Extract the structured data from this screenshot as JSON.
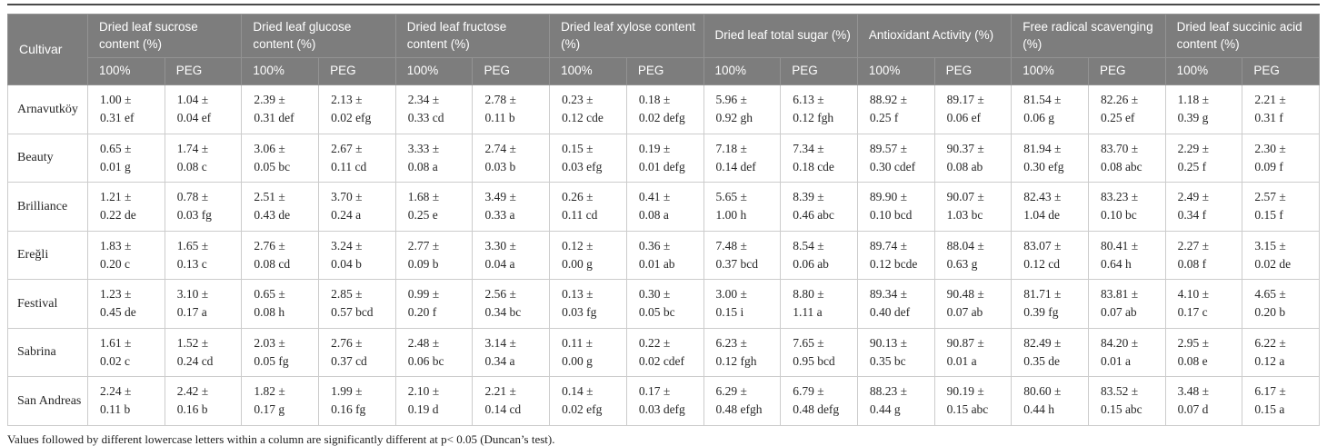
{
  "colors": {
    "header_bg": "#7d7d7d",
    "header_border": "#939393",
    "header_text": "#ffffff",
    "body_border": "#cccccc",
    "body_text": "#262626",
    "top_rule": "#4a4a4a"
  },
  "table": {
    "corner_header": "Cultivar",
    "group_headers": [
      "Dried leaf sucrose content (%)",
      "Dried leaf glucose content (%)",
      "Dried leaf fructose content (%)",
      "Dried leaf xylose content (%)",
      "Dried leaf total sugar (%)",
      "Antioxidant Activity (%)",
      "Free radical scavenging (%)",
      "Dried leaf succinic acid content (%)"
    ],
    "subheaders": [
      "100%",
      "PEG"
    ],
    "rows": [
      {
        "cultivar": "Arnavutköy",
        "cells": [
          [
            "1.00 ±",
            "0.31 ef"
          ],
          [
            "1.04 ±",
            "0.04 ef"
          ],
          [
            "2.39 ±",
            "0.31 def"
          ],
          [
            "2.13 ±",
            "0.02 efg"
          ],
          [
            "2.34 ±",
            "0.33 cd"
          ],
          [
            "2.78 ±",
            "0.11 b"
          ],
          [
            "0.23 ±",
            "0.12 cde"
          ],
          [
            "0.18 ±",
            "0.02 defg"
          ],
          [
            "5.96 ±",
            "0.92 gh"
          ],
          [
            "6.13 ±",
            "0.12 fgh"
          ],
          [
            "88.92 ±",
            "0.25 f"
          ],
          [
            "89.17 ±",
            "0.06 ef"
          ],
          [
            "81.54 ±",
            "0.06 g"
          ],
          [
            "82.26 ±",
            "0.25 ef"
          ],
          [
            "1.18 ±",
            "0.39 g"
          ],
          [
            "2.21 ±",
            "0.31 f"
          ]
        ]
      },
      {
        "cultivar": "Beauty",
        "cells": [
          [
            "0.65 ±",
            "0.01 g"
          ],
          [
            "1.74 ±",
            "0.08 c"
          ],
          [
            "3.06 ±",
            "0.05 bc"
          ],
          [
            "2.67 ±",
            "0.11 cd"
          ],
          [
            "3.33 ±",
            "0.08 a"
          ],
          [
            "2.74 ±",
            "0.03 b"
          ],
          [
            "0.15 ±",
            "0.03 efg"
          ],
          [
            "0.19 ±",
            "0.01 defg"
          ],
          [
            "7.18 ±",
            "0.14 def"
          ],
          [
            "7.34 ±",
            "0.18 cde"
          ],
          [
            "89.57 ±",
            "0.30 cdef"
          ],
          [
            "90.37 ±",
            "0.08 ab"
          ],
          [
            "81.94 ±",
            "0.30 efg"
          ],
          [
            "83.70 ±",
            "0.08 abc"
          ],
          [
            "2.29 ±",
            "0.25 f"
          ],
          [
            "2.30 ±",
            "0.09 f"
          ]
        ]
      },
      {
        "cultivar": "Brilliance",
        "cells": [
          [
            "1.21 ±",
            "0.22 de"
          ],
          [
            "0.78 ±",
            "0.03 fg"
          ],
          [
            "2.51 ±",
            "0.43 de"
          ],
          [
            "3.70 ±",
            "0.24 a"
          ],
          [
            "1.68 ±",
            "0.25 e"
          ],
          [
            "3.49 ±",
            "0.33 a"
          ],
          [
            "0.26 ±",
            "0.11 cd"
          ],
          [
            "0.41 ±",
            "0.08 a"
          ],
          [
            "5.65 ±",
            "1.00 h"
          ],
          [
            "8.39 ±",
            "0.46 abc"
          ],
          [
            "89.90 ±",
            "0.10 bcd"
          ],
          [
            "90.07 ±",
            "1.03 bc"
          ],
          [
            "82.43 ±",
            "1.04 de"
          ],
          [
            "83.23 ±",
            "0.10 bc"
          ],
          [
            "2.49 ±",
            "0.34 f"
          ],
          [
            "2.57 ±",
            "0.15 f"
          ]
        ]
      },
      {
        "cultivar": "Ereğli",
        "cells": [
          [
            "1.83 ±",
            "0.20 c"
          ],
          [
            "1.65 ±",
            "0.13 c"
          ],
          [
            "2.76 ±",
            "0.08 cd"
          ],
          [
            "3.24 ±",
            "0.04 b"
          ],
          [
            "2.77 ±",
            "0.09 b"
          ],
          [
            "3.30 ±",
            "0.04 a"
          ],
          [
            "0.12 ±",
            "0.00 g"
          ],
          [
            "0.36 ±",
            "0.01 ab"
          ],
          [
            "7.48 ±",
            "0.37 bcd"
          ],
          [
            "8.54 ±",
            "0.06 ab"
          ],
          [
            "89.74 ±",
            "0.12 bcde"
          ],
          [
            "88.04 ±",
            "0.63 g"
          ],
          [
            "83.07 ±",
            "0.12 cd"
          ],
          [
            "80.41 ±",
            "0.64 h"
          ],
          [
            "2.27 ±",
            "0.08 f"
          ],
          [
            "3.15 ±",
            "0.02 de"
          ]
        ]
      },
      {
        "cultivar": "Festival",
        "cells": [
          [
            "1.23 ±",
            "0.45 de"
          ],
          [
            "3.10 ±",
            "0.17 a"
          ],
          [
            "0.65 ±",
            "0.08 h"
          ],
          [
            "2.85 ±",
            "0.57 bcd"
          ],
          [
            "0.99 ±",
            "0.20 f"
          ],
          [
            "2.56 ±",
            "0.34 bc"
          ],
          [
            "0.13 ±",
            "0.03 fg"
          ],
          [
            "0.30 ±",
            "0.05 bc"
          ],
          [
            "3.00 ±",
            "0.15 i"
          ],
          [
            "8.80 ±",
            "1.11 a"
          ],
          [
            "89.34 ±",
            "0.40 def"
          ],
          [
            "90.48 ±",
            "0.07 ab"
          ],
          [
            "81.71 ±",
            "0.39 fg"
          ],
          [
            "83.81 ±",
            "0.07 ab"
          ],
          [
            "4.10 ±",
            "0.17 c"
          ],
          [
            "4.65 ±",
            "0.20 b"
          ]
        ]
      },
      {
        "cultivar": "Sabrina",
        "cells": [
          [
            "1.61 ±",
            "0.02 c"
          ],
          [
            "1.52 ±",
            "0.24 cd"
          ],
          [
            "2.03 ±",
            "0.05 fg"
          ],
          [
            "2.76 ±",
            "0.37 cd"
          ],
          [
            "2.48 ±",
            "0.06 bc"
          ],
          [
            "3.14 ±",
            "0.34 a"
          ],
          [
            "0.11 ±",
            "0.00 g"
          ],
          [
            "0.22 ±",
            "0.02 cdef"
          ],
          [
            "6.23 ±",
            "0.12 fgh"
          ],
          [
            "7.65 ±",
            "0.95 bcd"
          ],
          [
            "90.13 ±",
            "0.35 bc"
          ],
          [
            "90.87 ±",
            "0.01 a"
          ],
          [
            "82.49 ±",
            "0.35 de"
          ],
          [
            "84.20 ±",
            "0.01 a"
          ],
          [
            "2.95 ±",
            "0.08 e"
          ],
          [
            "6.22 ±",
            "0.12 a"
          ]
        ]
      },
      {
        "cultivar": "San Andreas",
        "cells": [
          [
            "2.24 ±",
            "0.11 b"
          ],
          [
            "2.42 ±",
            "0.16 b"
          ],
          [
            "1.82 ±",
            "0.17 g"
          ],
          [
            "1.99 ±",
            "0.16 fg"
          ],
          [
            "2.10 ±",
            "0.19 d"
          ],
          [
            "2.21 ±",
            "0.14 cd"
          ],
          [
            "0.14 ±",
            "0.02 efg"
          ],
          [
            "0.17 ±",
            "0.03 defg"
          ],
          [
            "6.29 ±",
            "0.48 efgh"
          ],
          [
            "6.79 ±",
            "0.48 defg"
          ],
          [
            "88.23 ±",
            "0.44 g"
          ],
          [
            "90.19 ±",
            "0.15 abc"
          ],
          [
            "80.60 ±",
            "0.44 h"
          ],
          [
            "83.52 ±",
            "0.15 abc"
          ],
          [
            "3.48 ±",
            "0.07 d"
          ],
          [
            "6.17 ±",
            "0.15 a"
          ]
        ]
      }
    ],
    "footnote": "Values followed by different lowercase letters within a column are significantly different at p< 0.05 (Duncan’s test)."
  }
}
